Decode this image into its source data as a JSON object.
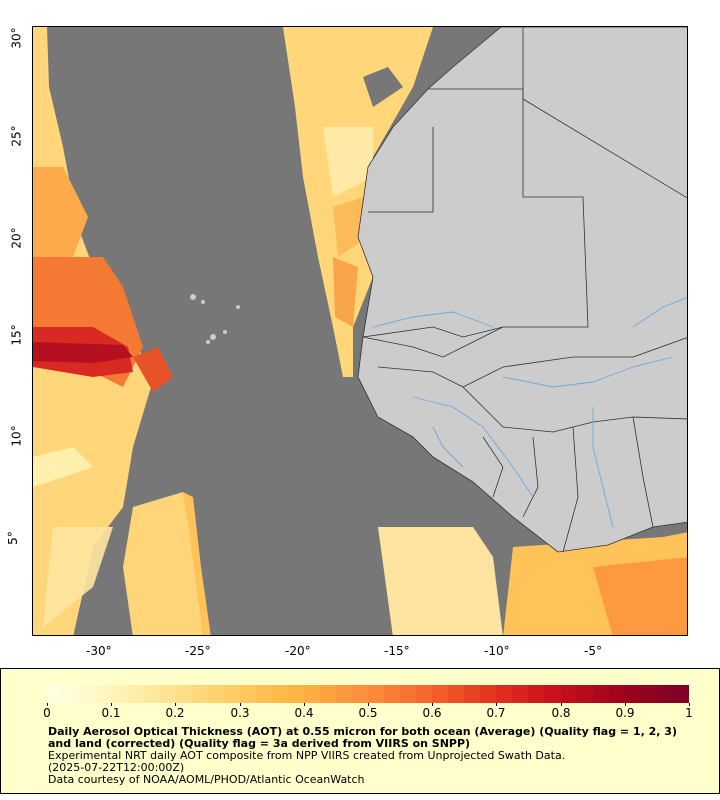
{
  "map": {
    "lon_ticks": [
      "-30°",
      "-25°",
      "-20°",
      "-15°",
      "-10°",
      "-5°"
    ],
    "lat_ticks": [
      "5°",
      "10°",
      "15°",
      "20°",
      "25°",
      "30°"
    ],
    "colors": {
      "no_data": "#777777",
      "land": "#cccccc",
      "borders": "#444444",
      "rivers": "#6fa8dc"
    }
  },
  "colorbar": {
    "ticks": [
      "0",
      "0.1",
      "0.2",
      "0.3",
      "0.4",
      "0.5",
      "0.6",
      "0.7",
      "0.8",
      "0.9",
      "1"
    ],
    "colors": [
      "#ffffe0",
      "#fff3b8",
      "#ffe08a",
      "#ffc95e",
      "#ffb040",
      "#fd8d3c",
      "#f3642c",
      "#e3331f",
      "#c8101c",
      "#a0041e",
      "#800026"
    ]
  },
  "caption": {
    "title": "Daily Aerosol Optical Thickness (AOT) at 0.55 micron for both ocean (Average) (Quality flag = 1, 2, 3) and land (corrected) (Quality flag = 3a derived from VIIRS on SNPP)",
    "line2": "Experimental NRT daily AOT composite from NPP VIIRS created from Unprojected Swath Data.",
    "line3": "(2025-07-22T12:00:00Z)",
    "line4": "Data courtesy of NOAA/AOML/PHOD/Atlantic OceanWatch"
  }
}
